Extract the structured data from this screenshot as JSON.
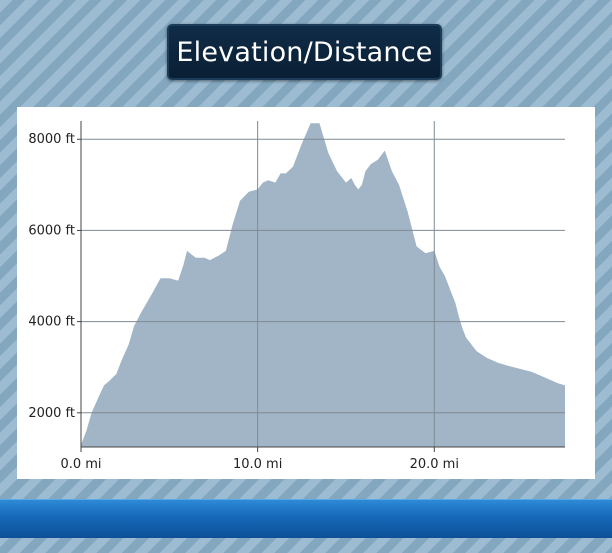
{
  "header": {
    "title": "Elevation/Distance"
  },
  "colors": {
    "fill": "#a1b5c7",
    "grid": "#7f8a94",
    "axis": "#444444",
    "title_bg": "#0f2c47",
    "bottom_bar": "#1668b8"
  },
  "chart_data": {
    "type": "area",
    "title": "Elevation/Distance",
    "xlabel": "",
    "ylabel": "",
    "xlim": [
      0,
      27.4
    ],
    "ylim": [
      1250,
      8400
    ],
    "grid": true,
    "x_ticks": [
      {
        "value": 0,
        "label": "0.0 mi"
      },
      {
        "value": 10,
        "label": "10.0 mi"
      },
      {
        "value": 20,
        "label": "20.0 mi"
      }
    ],
    "y_ticks": [
      {
        "value": 2000,
        "label": "2000 ft"
      },
      {
        "value": 4000,
        "label": "4000 ft"
      },
      {
        "value": 6000,
        "label": "6000 ft"
      },
      {
        "value": 8000,
        "label": "8000 ft"
      }
    ],
    "series": [
      {
        "x": [
          0,
          0.3,
          0.6,
          1.0,
          1.3,
          1.6,
          2.0,
          2.3,
          2.7,
          3.0,
          3.4,
          3.7,
          4.0,
          4.5,
          5.0,
          5.5,
          5.8,
          6.0,
          6.5,
          7.0,
          7.3,
          7.8,
          8.2,
          8.6,
          9.0,
          9.5,
          10.0,
          10.3,
          10.6,
          11.0,
          11.3,
          11.6,
          12.0,
          12.5,
          13.0,
          13.5,
          14.0,
          14.5,
          15.0,
          15.3,
          15.5,
          15.7,
          15.9,
          16.1,
          16.4,
          16.8,
          17.2,
          17.6,
          18.0,
          18.5,
          19.0,
          19.5,
          20.0,
          20.3,
          20.6,
          20.9,
          21.2,
          21.4,
          21.6,
          21.8,
          22.0,
          22.2,
          22.4,
          22.6,
          22.8,
          23.0,
          23.3,
          23.6,
          24.0,
          24.5,
          25.0,
          25.5,
          25.8,
          26.1,
          26.4,
          26.7,
          27.0,
          27.4
        ],
        "values": [
          1300,
          1600,
          2000,
          2350,
          2600,
          2700,
          2850,
          3150,
          3500,
          3900,
          4200,
          4400,
          4600,
          4950,
          4950,
          4900,
          5250,
          5550,
          5400,
          5400,
          5350,
          5450,
          5550,
          6150,
          6650,
          6850,
          6900,
          7050,
          7100,
          7050,
          7250,
          7250,
          7400,
          7900,
          8350,
          8350,
          7700,
          7300,
          7050,
          7150,
          7000,
          6900,
          7000,
          7300,
          7450,
          7550,
          7750,
          7300,
          7000,
          6400,
          5650,
          5500,
          5550,
          5200,
          5000,
          4700,
          4400,
          4100,
          3850,
          3650,
          3550,
          3450,
          3350,
          3300,
          3250,
          3200,
          3150,
          3100,
          3050,
          3000,
          2950,
          2900,
          2850,
          2800,
          2750,
          2700,
          2650,
          2600
        ]
      }
    ]
  }
}
